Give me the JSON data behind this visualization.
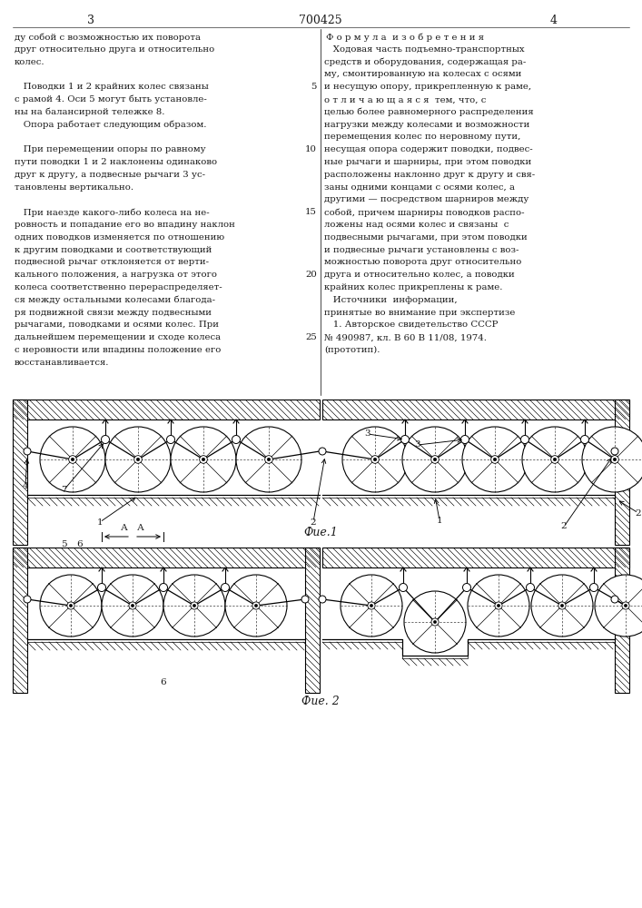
{
  "page_number_left": "3",
  "patent_number": "700425",
  "page_number_right": "4",
  "left_column_lines": [
    "ду собой с возможностью их поворота",
    "друг относительно друга и относительно",
    "колес.",
    "",
    "   Поводки 1 и 2 крайних колес связаны",
    "с рамой 4. Оси 5 могут быть установле-",
    "ны на балансирной тележке 8.",
    "   Опора работает следующим образом.",
    "",
    "   При перемещении опоры по равному",
    "пути поводки 1 и 2 наклонены одинаково",
    "друг к другу, а подвесные рычаги 3 ус-",
    "тановлены вертикально.",
    "",
    "   При наезде какого-либо колеса на не-",
    "ровность и попадание его во впадину наклон",
    "одних поводков изменяется по отношению",
    "к другим поводками и соответствующий",
    "подвесной рычаг отклоняется от верти-",
    "кального положения, а нагрузка от этого",
    "колеса соответственно перераспределяет-",
    "ся между остальными колесами благода-",
    "ря подвижной связи между подвесными",
    "рычагами, поводками и осями колес. При",
    "дальнейшем перемещении и сходе колеса",
    "с неровности или впадины положение его",
    "восстанавливается."
  ],
  "right_column_header": "Ф о р м у л а  и з о б р е т е н и я",
  "right_column_lines": [
    "   Ходовая часть подъемно-транспортных",
    "средств и оборудования, содержащая ра-",
    "му, смонтированную на колесах с осями",
    "и несущую опору, прикрепленную к раме,",
    "о т л и ч а ю щ а я с я  тем, что, с",
    "целью более равномерного распределения",
    "нагрузки между колесами и возможности",
    "перемещения колес по неровному пути,",
    "несущая опора содержит поводки, подвес-",
    "ные рычаги и шарниры, при этом поводки",
    "расположены наклонно друг к другу и свя-",
    "заны одними концами с осями колес, а",
    "другими — посредством шарниров между",
    "собой, причем шарниры поводков распо-",
    "ложены над осями колес и связаны  с",
    "подвесными рычагами, при этом поводки",
    "и подвесные рычаги установлены с воз-",
    "можностью поворота друг относительно",
    "друга и относительно колес, а поводки",
    "крайних колес прикреплены к раме.",
    "   Источники  информации,",
    "принятые во внимание при экспертизе",
    "   1. Авторское свидетельство СССР",
    "№ 490987, кл. В 60 В 11/08, 1974.",
    "(прототип)."
  ],
  "line_numbers_idx": [
    4,
    9,
    14,
    19,
    24
  ],
  "line_numbers_val": [
    "5",
    "10",
    "15",
    "20",
    "25"
  ],
  "bg_color": "#ffffff",
  "text_color": "#1a1a1a",
  "fig1_label": "Фие.1",
  "fig2_label": "Фие. 2"
}
